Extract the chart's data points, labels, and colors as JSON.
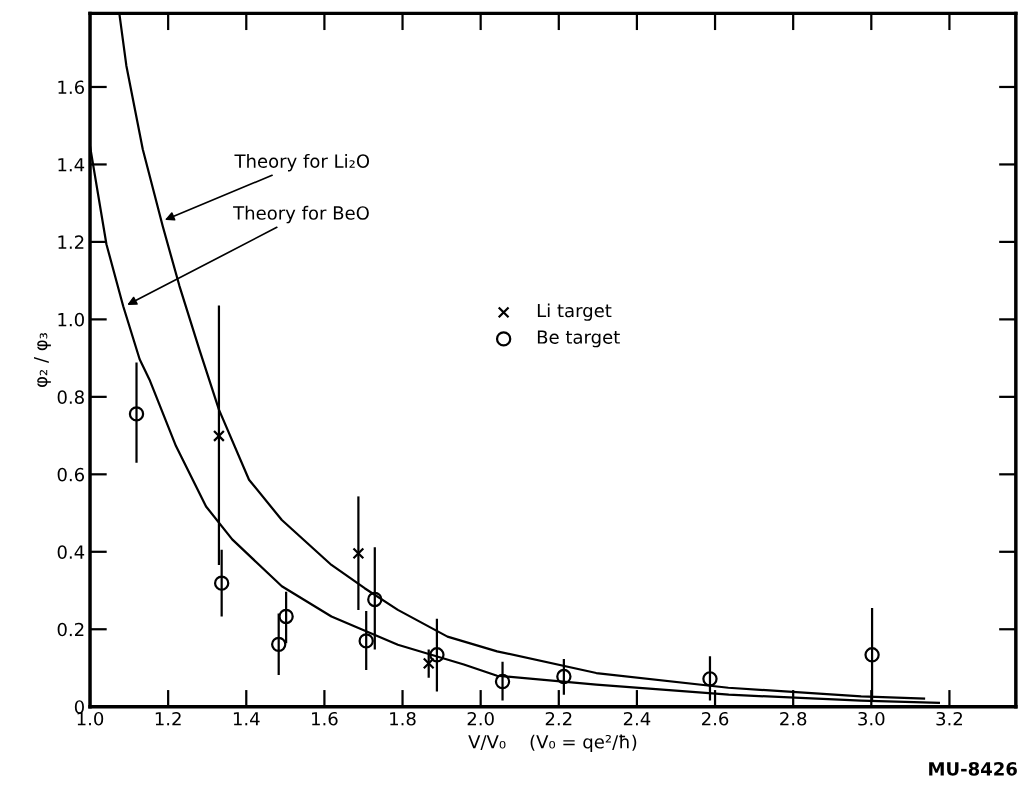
{
  "chart_data": {
    "type": "scatter",
    "xlabel": "V/V₀    (V₀ = qe²/ħ)",
    "ylabel": "φ₂ / φ₃",
    "xlim": [
      1.0,
      3.37
    ],
    "xticks": [
      {
        "value": 1,
        "label": "1.0"
      },
      1.2,
      1.4,
      1.6,
      1.8,
      {
        "value": 2,
        "label": "2.0"
      },
      2.2,
      2.4,
      2.6,
      2.8,
      {
        "value": 3,
        "label": "3.0"
      },
      3.2
    ],
    "ylim": [
      0,
      1.79
    ],
    "yticks": [
      0,
      0.2,
      0.4,
      0.6,
      0.8,
      {
        "value": 1,
        "label": "1.0"
      },
      1.2,
      1.4,
      1.6
    ],
    "grid": false,
    "legend": "center",
    "series": [
      {
        "name": "Li target",
        "marker": "cross",
        "color": "#000000",
        "x": [
          1.33,
          1.687,
          1.867
        ],
        "values": [
          0.699,
          0.396,
          0.112
        ],
        "errors": [
          [
            0.366,
            1.036
          ],
          [
            0.25,
            0.543
          ],
          [
            0.075,
            0.148
          ]
        ]
      },
      {
        "name": "Be target",
        "marker": "circle",
        "color": "#000000",
        "x": [
          1.119,
          1.337,
          1.483,
          1.502,
          1.707,
          1.729,
          1.888,
          2.056,
          2.213,
          2.587,
          3.002
        ],
        "values": [
          0.756,
          0.319,
          0.161,
          0.233,
          0.17,
          0.277,
          0.134,
          0.065,
          0.078,
          0.072,
          0.134
        ],
        "errors": [
          [
            0.63,
            0.889
          ],
          [
            0.233,
            0.405
          ],
          [
            0.082,
            0.241
          ],
          [
            0.164,
            0.297
          ],
          [
            0.095,
            0.247
          ],
          [
            0.148,
            0.412
          ],
          [
            0.039,
            0.227
          ],
          [
            0.016,
            0.116
          ],
          [
            0.031,
            0.123
          ],
          [
            0.016,
            0.13
          ],
          [
            0.014,
            0.255
          ]
        ]
      },
      {
        "type": "line",
        "marker": "none",
        "color": "#000000",
        "x": [
          1.075,
          1.093,
          1.135,
          1.186,
          1.229,
          1.28,
          1.33,
          1.407,
          1.491,
          1.618,
          1.703,
          1.788,
          1.915,
          2.042,
          2.296,
          2.634,
          2.974,
          3.135
        ],
        "values": [
          1.79,
          1.655,
          1.439,
          1.241,
          1.086,
          0.922,
          0.767,
          0.586,
          0.482,
          0.366,
          0.306,
          0.25,
          0.181,
          0.143,
          0.087,
          0.049,
          0.027,
          0.021
        ]
      },
      {
        "type": "line",
        "marker": "none",
        "color": "#000000",
        "x": [
          1.0,
          1.042,
          1.085,
          1.127,
          1.152,
          1.22,
          1.297,
          1.364,
          1.491,
          1.618,
          1.788,
          1.957,
          2.042,
          2.296,
          2.635,
          2.974,
          3.173
        ],
        "values": [
          1.447,
          1.194,
          1.034,
          0.897,
          0.845,
          0.673,
          0.517,
          0.432,
          0.311,
          0.233,
          0.16,
          0.109,
          0.08,
          0.057,
          0.031,
          0.016,
          0.01
        ]
      }
    ],
    "annotations": [
      {
        "text": "Theory for Li₂O",
        "x": 1.185,
        "y": 1.254
      },
      {
        "text": "Theory for BeO",
        "x": 1.089,
        "y": 1.034
      },
      "MU-8426"
    ]
  }
}
